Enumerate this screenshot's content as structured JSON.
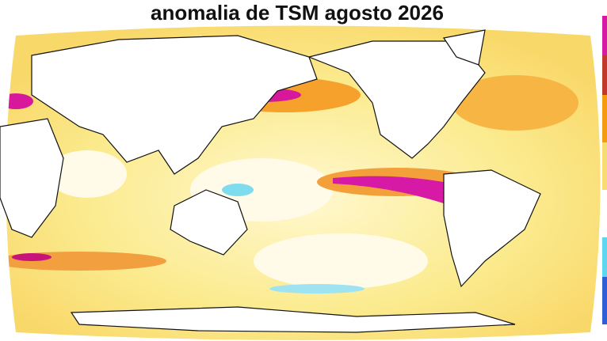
{
  "title": "anomalia de TSM agosto 2026"
}
